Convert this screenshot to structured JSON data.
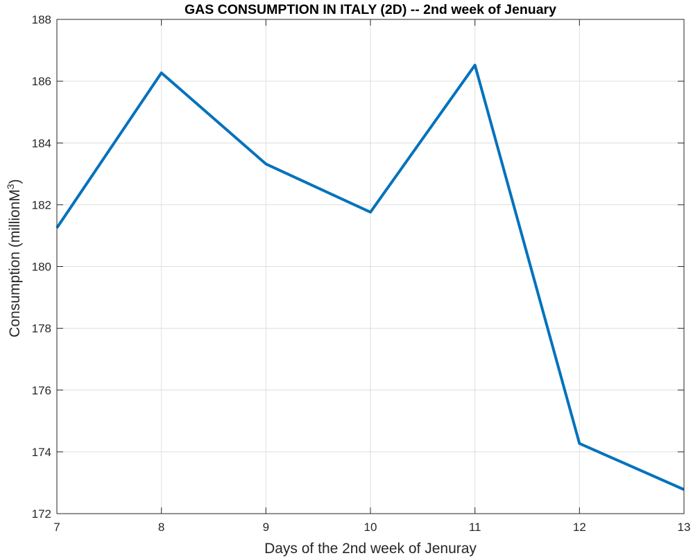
{
  "chart_data": {
    "type": "line",
    "title": "GAS CONSUMPTION IN ITALY (2D) -- 2nd week of Jenuary",
    "xlabel": "Days of the 2nd week of Jenuray",
    "ylabel_main": "Consumption (millionM",
    "ylabel_sup": "3",
    "ylabel_close": ")",
    "xlim": [
      7,
      13
    ],
    "ylim": [
      172,
      188
    ],
    "xticks": [
      7,
      8,
      9,
      10,
      11,
      12,
      13
    ],
    "yticks": [
      172,
      174,
      176,
      178,
      180,
      182,
      184,
      186,
      188
    ],
    "grid": true,
    "series": [
      {
        "color": "#0072BD",
        "x": [
          7,
          8,
          9,
          10,
          11,
          12,
          13
        ],
        "y": [
          181.25,
          186.27,
          183.32,
          181.76,
          186.52,
          174.27,
          172.78
        ]
      }
    ]
  }
}
